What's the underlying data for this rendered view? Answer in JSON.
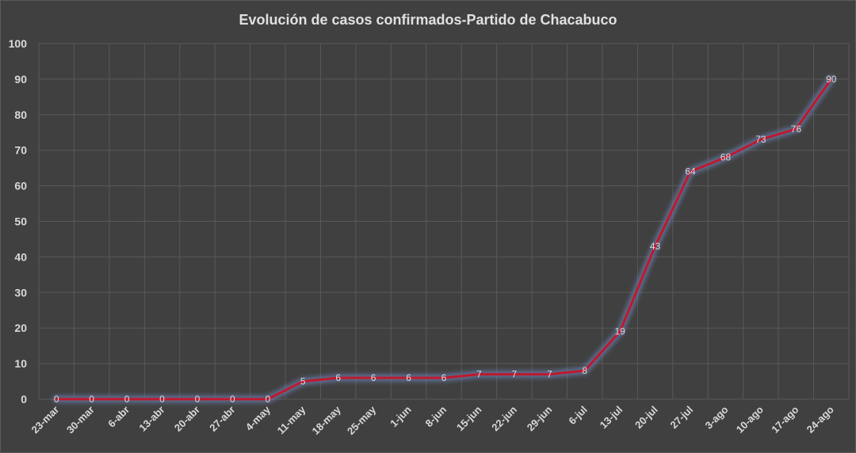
{
  "chart_data": {
    "type": "line",
    "title": "Evolución  de casos confirmados-Partido  de Chacabuco",
    "xlabel": "",
    "ylabel": "",
    "ylim": [
      0,
      100
    ],
    "yticks": [
      0,
      10,
      20,
      30,
      40,
      50,
      60,
      70,
      80,
      90,
      100
    ],
    "grid": true,
    "legend": "none",
    "categories": [
      "23-mar",
      "30-mar",
      "6-abr",
      "13-abr",
      "20-abr",
      "27-abr",
      "4-may",
      "11-may",
      "18-may",
      "25-may",
      "1-jun",
      "8-jun",
      "15-jun",
      "22-jun",
      "29-jun",
      "6-jul",
      "13-jul",
      "20-jul",
      "27-jul",
      "3-ago",
      "10-ago",
      "17-ago",
      "24-ago"
    ],
    "series": [
      {
        "values": [
          0,
          0,
          0,
          0,
          0,
          0,
          0,
          5,
          6,
          6,
          6,
          6,
          7,
          7,
          7,
          8,
          19,
          43,
          64,
          68,
          73,
          76,
          90
        ],
        "color": "#c0182d",
        "glow_color": "#6a7fb0"
      }
    ],
    "colors": {
      "background": "#404040",
      "grid": "#595959",
      "text": "#d9d9d9"
    }
  }
}
